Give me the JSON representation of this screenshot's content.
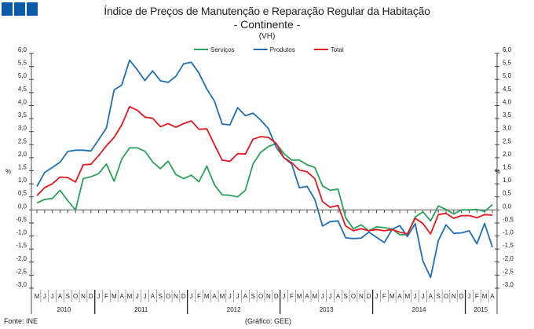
{
  "logo": {
    "color": "#0b5aa8"
  },
  "title": "Índice de Preços de Manutenção e Reparação Regular da Habitação",
  "subtitle": "- Continente -",
  "unit_note": "(VH)",
  "footer": {
    "source": "Fonte: INE",
    "credit": "(Gráfico: GEE)"
  },
  "chart_data": {
    "type": "line",
    "title": "Índice de Preços de Manutenção e Reparação Regular da Habitação",
    "subtitle": "- Continente -",
    "ylabel": "%",
    "ylim": [
      -3.0,
      6.0
    ],
    "ytick_step": 0.5,
    "yticks": [
      "6,0",
      "5,5",
      "5,0",
      "4,5",
      "4,0",
      "3,5",
      "3,0",
      "2,5",
      "2,0",
      "1,5",
      "1,0",
      "0,5",
      "0,0",
      "-0,5",
      "-1,0",
      "-1,5",
      "-2,0",
      "-2,5",
      "-3,0"
    ],
    "legend_position": "top-center",
    "grid": false,
    "month_labels": [
      "M",
      "J",
      "J",
      "A",
      "S",
      "O",
      "N",
      "D",
      "J",
      "F",
      "M",
      "A",
      "M",
      "J",
      "J",
      "A",
      "S",
      "O",
      "N",
      "D",
      "J",
      "F",
      "M",
      "A",
      "M",
      "J",
      "J",
      "A",
      "S",
      "O",
      "N",
      "D",
      "J",
      "F",
      "M",
      "A",
      "M",
      "J",
      "J",
      "A",
      "S",
      "O",
      "N",
      "D",
      "J",
      "F",
      "M",
      "A",
      "M",
      "J",
      "J",
      "A",
      "S",
      "O",
      "N",
      "D",
      "J",
      "F",
      "M",
      "A"
    ],
    "years": [
      {
        "label": "2010",
        "months": 8
      },
      {
        "label": "2011",
        "months": 12
      },
      {
        "label": "2012",
        "months": 12
      },
      {
        "label": "2013",
        "months": 12
      },
      {
        "label": "2014",
        "months": 12
      },
      {
        "label": "2015",
        "months": 4
      }
    ],
    "x_range": [
      "2010-05",
      "2015-04"
    ],
    "series": [
      {
        "name": "Serviços",
        "color": "#2ca05a",
        "values": [
          0.27,
          0.4,
          0.44,
          0.75,
          0.35,
          0.0,
          1.2,
          1.27,
          1.39,
          1.76,
          1.1,
          1.95,
          2.38,
          2.38,
          2.25,
          1.84,
          1.58,
          1.87,
          1.36,
          1.2,
          1.33,
          1.08,
          1.68,
          0.96,
          0.58,
          0.56,
          0.5,
          0.75,
          1.76,
          2.21,
          2.43,
          2.54,
          2.16,
          1.91,
          1.91,
          1.73,
          1.63,
          0.92,
          0.75,
          0.8,
          -0.3,
          -0.72,
          -0.57,
          -0.8,
          -0.65,
          -0.68,
          -0.73,
          -0.95,
          -0.95,
          -0.27,
          -0.07,
          -0.42,
          0.15,
          0.02,
          -0.16,
          0.0,
          0.0,
          0.02,
          -0.06,
          0.2
        ]
      },
      {
        "name": "Produtos",
        "color": "#1f6fb4",
        "values": [
          0.9,
          1.43,
          1.63,
          1.83,
          2.24,
          2.29,
          2.29,
          2.26,
          2.69,
          3.14,
          4.6,
          4.79,
          5.74,
          5.37,
          4.96,
          5.33,
          4.95,
          4.89,
          5.12,
          5.6,
          5.66,
          5.24,
          4.64,
          4.17,
          3.29,
          3.26,
          3.92,
          3.61,
          3.71,
          3.44,
          3.11,
          2.4,
          2.0,
          1.76,
          0.85,
          0.9,
          0.4,
          -0.62,
          -0.45,
          -0.42,
          -1.07,
          -1.1,
          -1.08,
          -0.85,
          -1.05,
          -1.25,
          -0.75,
          -0.6,
          -1.02,
          -0.53,
          -1.96,
          -2.59,
          -1.17,
          -0.57,
          -0.9,
          -0.88,
          -0.8,
          -1.3,
          -0.52,
          -1.43
        ]
      },
      {
        "name": "Total",
        "color": "#e0191f",
        "values": [
          0.55,
          0.85,
          1.0,
          1.26,
          1.24,
          1.07,
          1.73,
          1.75,
          2.08,
          2.46,
          2.78,
          3.26,
          3.96,
          3.82,
          3.56,
          3.51,
          3.19,
          3.31,
          3.17,
          3.31,
          3.41,
          3.09,
          3.11,
          2.5,
          1.91,
          1.86,
          2.16,
          2.14,
          2.71,
          2.81,
          2.78,
          2.55,
          2.0,
          1.81,
          1.53,
          1.46,
          1.2,
          0.32,
          0.1,
          0.17,
          -0.62,
          -0.8,
          -0.72,
          -0.8,
          -0.75,
          -0.8,
          -0.75,
          -0.85,
          -0.92,
          -0.32,
          -0.52,
          -0.92,
          -0.18,
          -0.13,
          -0.32,
          -0.22,
          -0.22,
          -0.3,
          -0.18,
          -0.2
        ]
      }
    ]
  }
}
